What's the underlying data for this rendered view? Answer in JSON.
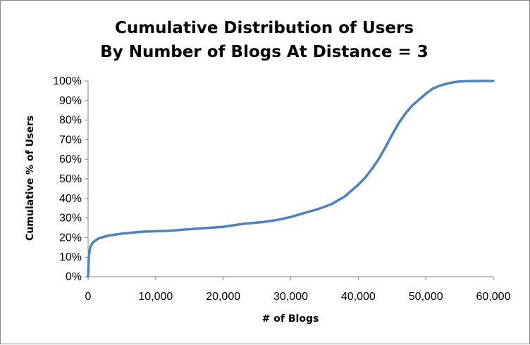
{
  "chart_data": {
    "type": "line",
    "title": "Cumulative Distribution of Users",
    "subtitle": "By Number of Blogs At Distance = 3",
    "xlabel": "# of Blogs",
    "ylabel": "Cumulative % of Users",
    "xlim": [
      0,
      60000
    ],
    "ylim": [
      0,
      100
    ],
    "x_ticks": [
      "0",
      "10,000",
      "20,000",
      "30,000",
      "40,000",
      "50,000",
      "60,000"
    ],
    "y_ticks": [
      "0%",
      "10%",
      "20%",
      "30%",
      "40%",
      "50%",
      "60%",
      "70%",
      "80%",
      "90%",
      "100%"
    ],
    "grid": false,
    "legend": "none",
    "line_color": "#4f81bd",
    "series": [
      {
        "x": [
          0,
          100,
          300,
          700,
          1500,
          3000,
          5000,
          8000,
          12000,
          16000,
          20000,
          23000,
          26000,
          28000,
          30000,
          32000,
          34000,
          36000,
          38000,
          40000,
          41000,
          42000,
          43000,
          44000,
          45000,
          46000,
          47000,
          48000,
          49000,
          50000,
          51000,
          52000,
          53000,
          54000,
          55000,
          56000,
          58000,
          60000
        ],
        "y": [
          0,
          10,
          15,
          17.5,
          19.5,
          21,
          22,
          23,
          23.5,
          24.5,
          25.5,
          27,
          28,
          29,
          30.5,
          32.5,
          34.5,
          37,
          41,
          47,
          50.5,
          55,
          60,
          66,
          72.5,
          78.5,
          83.5,
          87.5,
          90.5,
          93.5,
          96,
          97.5,
          98.5,
          99.3,
          99.7,
          99.9,
          100,
          100
        ]
      }
    ]
  }
}
